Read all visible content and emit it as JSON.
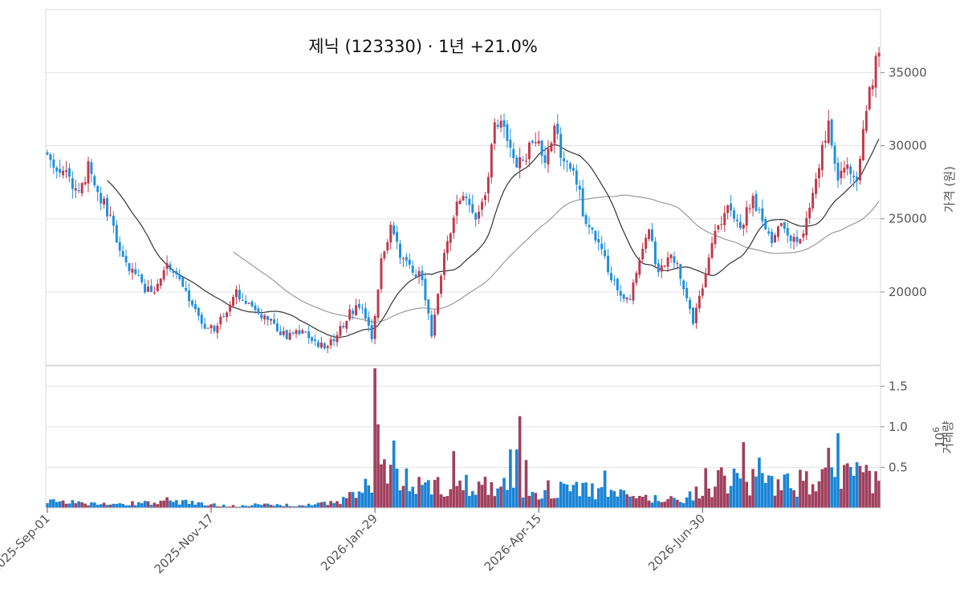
{
  "chart_data": {
    "type": "candlestick",
    "title": "제닉 (123330) · 1년 +21.0%",
    "price_axis": {
      "label": "가격 (원)",
      "ticks": [
        20000,
        25000,
        30000,
        35000
      ],
      "range": [
        15000,
        39300
      ]
    },
    "volume_axis": {
      "label": "거래량",
      "exponent_label": "1e6",
      "ticks": [
        0.5,
        1.0,
        1.5
      ],
      "tick_labels": [
        "0.5",
        "1.0",
        "1.5"
      ],
      "range": [
        0,
        1.75
      ]
    },
    "x_tick_labels": [
      "2025-Sep-01",
      "2025-Nov-17",
      "2026-Jan-29",
      "2026-Apr-15",
      "2026-Jun-30"
    ],
    "x_tick_index": [
      0,
      52,
      104,
      156,
      208
    ],
    "grid": true,
    "colors": {
      "up": "#c0394b",
      "down": "#1f8fdd",
      "up_volume": "#a0405e",
      "down_volume": "#1a84d6",
      "ma_short": "#333333",
      "ma_long": "#9a9a9a"
    },
    "price_anchors": [
      [
        0,
        29000
      ],
      [
        5,
        28200
      ],
      [
        10,
        26800
      ],
      [
        13,
        28500
      ],
      [
        17,
        26500
      ],
      [
        20,
        25000
      ],
      [
        24,
        22500
      ],
      [
        28,
        21000
      ],
      [
        33,
        19800
      ],
      [
        38,
        22000
      ],
      [
        42,
        21000
      ],
      [
        46,
        19000
      ],
      [
        50,
        17500
      ],
      [
        53,
        17600
      ],
      [
        56,
        18500
      ],
      [
        60,
        20000
      ],
      [
        64,
        19300
      ],
      [
        68,
        18300
      ],
      [
        72,
        17800
      ],
      [
        76,
        16800
      ],
      [
        80,
        17400
      ],
      [
        84,
        16700
      ],
      [
        88,
        16200
      ],
      [
        92,
        17000
      ],
      [
        95,
        18300
      ],
      [
        99,
        19200
      ],
      [
        103,
        16800
      ],
      [
        106,
        22200
      ],
      [
        109,
        24500
      ],
      [
        112,
        22500
      ],
      [
        116,
        21200
      ],
      [
        119,
        21000
      ],
      [
        122,
        17200
      ],
      [
        126,
        22800
      ],
      [
        130,
        25800
      ],
      [
        133,
        26400
      ],
      [
        136,
        24800
      ],
      [
        139,
        26500
      ],
      [
        142,
        31800
      ],
      [
        146,
        30800
      ],
      [
        149,
        28600
      ],
      [
        152,
        29400
      ],
      [
        155,
        30600
      ],
      [
        158,
        29200
      ],
      [
        161,
        31000
      ],
      [
        164,
        29000
      ],
      [
        167,
        28600
      ],
      [
        170,
        25500
      ],
      [
        174,
        23500
      ],
      [
        178,
        21600
      ],
      [
        182,
        19600
      ],
      [
        185,
        19500
      ],
      [
        188,
        22000
      ],
      [
        191,
        24000
      ],
      [
        194,
        21400
      ],
      [
        197,
        22500
      ],
      [
        200,
        22200
      ],
      [
        203,
        19400
      ],
      [
        205,
        17800
      ],
      [
        208,
        20500
      ],
      [
        212,
        24000
      ],
      [
        216,
        26000
      ],
      [
        220,
        24500
      ],
      [
        224,
        26500
      ],
      [
        227,
        24500
      ],
      [
        230,
        23400
      ],
      [
        233,
        24500
      ],
      [
        236,
        23600
      ],
      [
        239,
        23200
      ],
      [
        242,
        25400
      ],
      [
        245,
        28800
      ],
      [
        248,
        31800
      ],
      [
        251,
        27500
      ],
      [
        254,
        28800
      ],
      [
        257,
        28000
      ],
      [
        260,
        32500
      ],
      [
        262,
        34700
      ],
      [
        264,
        36800
      ]
    ],
    "volume_anchors": [
      [
        0,
        0.08
      ],
      [
        10,
        0.06
      ],
      [
        20,
        0.04
      ],
      [
        30,
        0.06
      ],
      [
        40,
        0.1
      ],
      [
        50,
        0.04
      ],
      [
        60,
        0.03
      ],
      [
        70,
        0.04
      ],
      [
        80,
        0.03
      ],
      [
        88,
        0.05
      ],
      [
        95,
        0.12
      ],
      [
        100,
        0.2
      ],
      [
        104,
        0.38
      ],
      [
        110,
        0.35
      ],
      [
        120,
        0.28
      ],
      [
        130,
        0.25
      ],
      [
        140,
        0.35
      ],
      [
        150,
        0.22
      ],
      [
        160,
        0.22
      ],
      [
        170,
        0.24
      ],
      [
        180,
        0.16
      ],
      [
        190,
        0.12
      ],
      [
        200,
        0.1
      ],
      [
        206,
        0.18
      ],
      [
        212,
        0.3
      ],
      [
        220,
        0.34
      ],
      [
        230,
        0.26
      ],
      [
        240,
        0.3
      ],
      [
        250,
        0.36
      ],
      [
        258,
        0.38
      ],
      [
        264,
        0.33
      ]
    ],
    "volume_spikes": [
      [
        104,
        1.72
      ],
      [
        105,
        1.03
      ],
      [
        107,
        0.6
      ],
      [
        110,
        0.83
      ],
      [
        129,
        0.7
      ],
      [
        147,
        0.72
      ],
      [
        149,
        0.72
      ],
      [
        150,
        1.13
      ],
      [
        152,
        0.59
      ],
      [
        177,
        0.46
      ],
      [
        209,
        0.49
      ],
      [
        214,
        0.5
      ],
      [
        221,
        0.81
      ],
      [
        224,
        0.48
      ],
      [
        226,
        0.62
      ],
      [
        239,
        0.47
      ],
      [
        248,
        0.74
      ],
      [
        251,
        0.92
      ],
      [
        260,
        0.53
      ]
    ],
    "n_bars": 265,
    "ma_short_window": 20,
    "ma_long_window": 60,
    "seed": 123330
  }
}
